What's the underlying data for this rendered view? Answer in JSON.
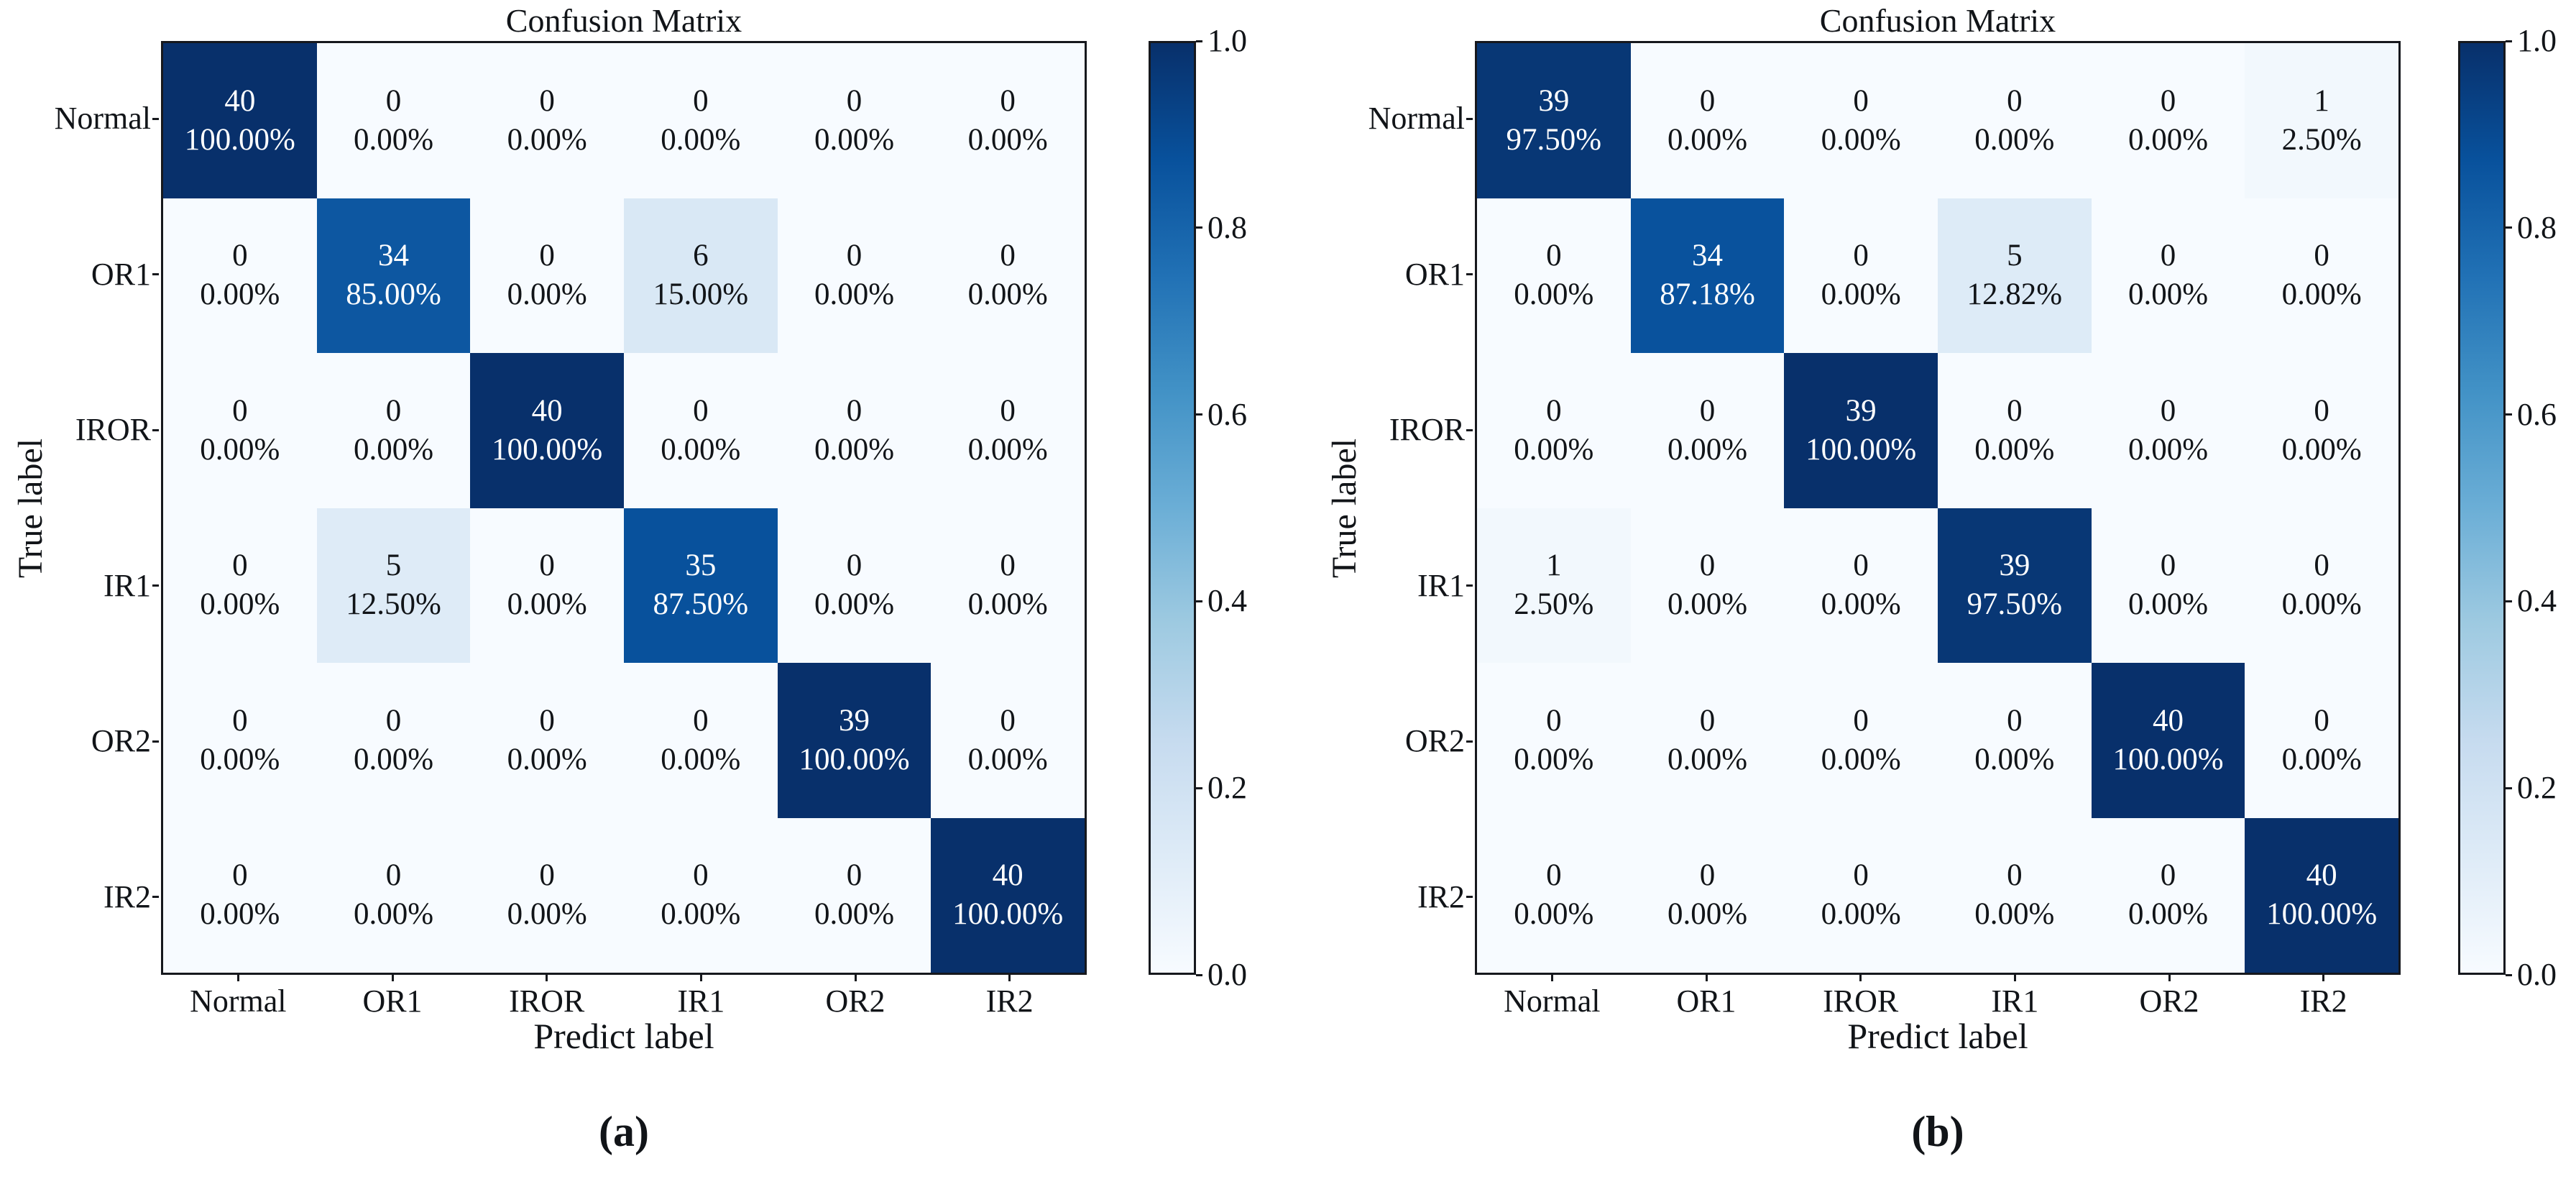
{
  "chart_data": [
    {
      "type": "heatmap",
      "caption": "(a)",
      "title": "Confusion Matrix",
      "xlabel": "Predict label",
      "ylabel": "True label",
      "x_categories": [
        "Normal",
        "OR1",
        "IROR",
        "IR1",
        "OR2",
        "IR2"
      ],
      "y_categories": [
        "Normal",
        "OR1",
        "IROR",
        "IR1",
        "OR2",
        "IR2"
      ],
      "colormap": "Blues",
      "color_range": [
        0.0,
        1.0
      ],
      "colorbar_ticks": [
        "1.0",
        "0.8",
        "0.6",
        "0.4",
        "0.2",
        "0.0"
      ],
      "counts": [
        [
          40,
          0,
          0,
          0,
          0,
          0
        ],
        [
          0,
          34,
          0,
          6,
          0,
          0
        ],
        [
          0,
          0,
          40,
          0,
          0,
          0
        ],
        [
          0,
          5,
          0,
          35,
          0,
          0
        ],
        [
          0,
          0,
          0,
          0,
          39,
          0
        ],
        [
          0,
          0,
          0,
          0,
          0,
          40
        ]
      ],
      "percents": [
        [
          "100.00%",
          "0.00%",
          "0.00%",
          "0.00%",
          "0.00%",
          "0.00%"
        ],
        [
          "0.00%",
          "85.00%",
          "0.00%",
          "15.00%",
          "0.00%",
          "0.00%"
        ],
        [
          "0.00%",
          "0.00%",
          "100.00%",
          "0.00%",
          "0.00%",
          "0.00%"
        ],
        [
          "0.00%",
          "12.50%",
          "0.00%",
          "87.50%",
          "0.00%",
          "0.00%"
        ],
        [
          "0.00%",
          "0.00%",
          "0.00%",
          "0.00%",
          "100.00%",
          "0.00%"
        ],
        [
          "0.00%",
          "0.00%",
          "0.00%",
          "0.00%",
          "0.00%",
          "100.00%"
        ]
      ]
    },
    {
      "type": "heatmap",
      "caption": "(b)",
      "title": "Confusion Matrix",
      "xlabel": "Predict label",
      "ylabel": "True label",
      "x_categories": [
        "Normal",
        "OR1",
        "IROR",
        "IR1",
        "OR2",
        "IR2"
      ],
      "y_categories": [
        "Normal",
        "OR1",
        "IROR",
        "IR1",
        "OR2",
        "IR2"
      ],
      "colormap": "Blues",
      "color_range": [
        0.0,
        1.0
      ],
      "colorbar_ticks": [
        "1.0",
        "0.8",
        "0.6",
        "0.4",
        "0.2",
        "0.0"
      ],
      "counts": [
        [
          39,
          0,
          0,
          0,
          0,
          1
        ],
        [
          0,
          34,
          0,
          5,
          0,
          0
        ],
        [
          0,
          0,
          39,
          0,
          0,
          0
        ],
        [
          1,
          0,
          0,
          39,
          0,
          0
        ],
        [
          0,
          0,
          0,
          0,
          40,
          0
        ],
        [
          0,
          0,
          0,
          0,
          0,
          40
        ]
      ],
      "percents": [
        [
          "97.50%",
          "0.00%",
          "0.00%",
          "0.00%",
          "0.00%",
          "2.50%"
        ],
        [
          "0.00%",
          "87.18%",
          "0.00%",
          "12.82%",
          "0.00%",
          "0.00%"
        ],
        [
          "0.00%",
          "0.00%",
          "100.00%",
          "0.00%",
          "0.00%",
          "0.00%"
        ],
        [
          "2.50%",
          "0.00%",
          "0.00%",
          "97.50%",
          "0.00%",
          "0.00%"
        ],
        [
          "0.00%",
          "0.00%",
          "0.00%",
          "0.00%",
          "100.00%",
          "0.00%"
        ],
        [
          "0.00%",
          "0.00%",
          "0.00%",
          "0.00%",
          "0.00%",
          "100.00%"
        ]
      ]
    }
  ]
}
